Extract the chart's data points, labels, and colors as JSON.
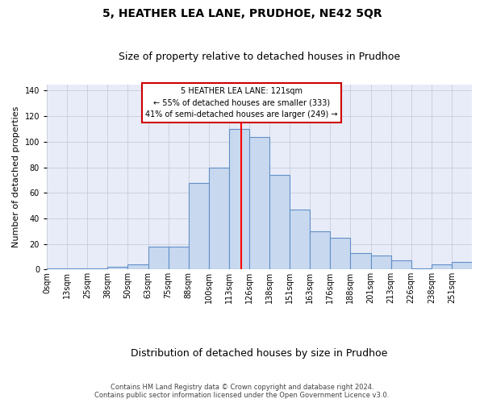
{
  "title": "5, HEATHER LEA LANE, PRUDHOE, NE42 5QR",
  "subtitle": "Size of property relative to detached houses in Prudhoe",
  "xlabel": "Distribution of detached houses by size in Prudhoe",
  "ylabel": "Number of detached properties",
  "footer_line1": "Contains HM Land Registry data © Crown copyright and database right 2024.",
  "footer_line2": "Contains public sector information licensed under the Open Government Licence v3.0.",
  "annotation_line1": "5 HEATHER LEA LANE: 121sqm",
  "annotation_line2": "← 55% of detached houses are smaller (333)",
  "annotation_line3": "41% of semi-detached houses are larger (249) →",
  "bar_values": [
    1,
    1,
    1,
    2,
    4,
    18,
    18,
    68,
    80,
    110,
    104,
    74,
    47,
    30,
    25,
    13,
    11,
    7,
    1,
    4,
    6
  ],
  "x_tick_labels": [
    "0sqm",
    "13sqm",
    "25sqm",
    "38sqm",
    "50sqm",
    "63sqm",
    "75sqm",
    "88sqm",
    "100sqm",
    "113sqm",
    "126sqm",
    "138sqm",
    "151sqm",
    "163sqm",
    "176sqm",
    "188sqm",
    "201sqm",
    "213sqm",
    "226sqm",
    "238sqm",
    "251sqm"
  ],
  "bar_color": "#c8d8ef",
  "bar_edge_color": "#6090c8",
  "grid_color": "#c8ccd8",
  "bg_color": "#e8ecf8",
  "red_line_x": 9.62,
  "ylim_max": 145,
  "yticks": [
    0,
    20,
    40,
    60,
    80,
    100,
    120,
    140
  ],
  "title_fontsize": 10,
  "subtitle_fontsize": 9,
  "ylabel_fontsize": 8,
  "xlabel_fontsize": 9,
  "tick_fontsize": 7,
  "footer_fontsize": 6
}
